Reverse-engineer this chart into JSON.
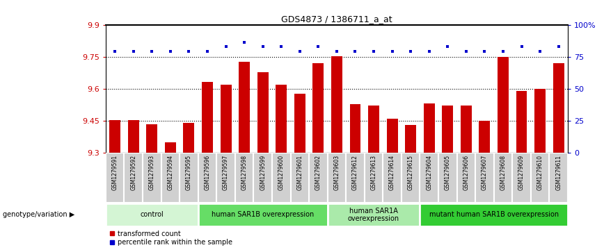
{
  "title": "GDS4873 / 1386711_a_at",
  "samples": [
    "GSM1279591",
    "GSM1279592",
    "GSM1279593",
    "GSM1279594",
    "GSM1279595",
    "GSM1279596",
    "GSM1279597",
    "GSM1279598",
    "GSM1279599",
    "GSM1279600",
    "GSM1279601",
    "GSM1279602",
    "GSM1279603",
    "GSM1279612",
    "GSM1279613",
    "GSM1279614",
    "GSM1279615",
    "GSM1279604",
    "GSM1279605",
    "GSM1279606",
    "GSM1279607",
    "GSM1279608",
    "GSM1279609",
    "GSM1279610",
    "GSM1279611"
  ],
  "bar_values": [
    9.452,
    9.451,
    9.432,
    9.348,
    9.438,
    9.632,
    9.618,
    9.728,
    9.678,
    9.618,
    9.578,
    9.72,
    9.753,
    9.528,
    9.522,
    9.46,
    9.43,
    9.53,
    9.52,
    9.52,
    9.45,
    9.752,
    9.59,
    9.6,
    9.72
  ],
  "percentile_values": [
    9.775,
    9.775,
    9.775,
    9.775,
    9.775,
    9.775,
    9.8,
    9.82,
    9.8,
    9.8,
    9.775,
    9.8,
    9.775,
    9.775,
    9.775,
    9.775,
    9.775,
    9.775,
    9.8,
    9.775,
    9.775,
    9.775,
    9.8,
    9.775,
    9.8
  ],
  "ylim_min": 9.3,
  "ylim_max": 9.9,
  "yticks_left": [
    9.3,
    9.45,
    9.6,
    9.75,
    9.9
  ],
  "ytick_left_labels": [
    "9.3",
    "9.45",
    "9.6",
    "9.75",
    "9.9"
  ],
  "dotted_lines": [
    9.75,
    9.6,
    9.45
  ],
  "right_ytick_pos": [
    9.3,
    9.45,
    9.6,
    9.75,
    9.9
  ],
  "right_ytick_labels": [
    "0",
    "25",
    "50",
    "75",
    "100%"
  ],
  "bar_color": "#cc0000",
  "dot_color": "#0000cc",
  "groups": [
    {
      "label": "control",
      "start": 0,
      "end": 4,
      "color": "#d4f5d4"
    },
    {
      "label": "human SAR1B overexpression",
      "start": 5,
      "end": 11,
      "color": "#66dd66"
    },
    {
      "label": "human SAR1A\noverexpression",
      "start": 12,
      "end": 16,
      "color": "#aaeaaa"
    },
    {
      "label": "mutant human SAR1B overexpression",
      "start": 17,
      "end": 24,
      "color": "#33cc33"
    }
  ],
  "legend_items": [
    {
      "label": "transformed count",
      "color": "#cc0000"
    },
    {
      "label": "percentile rank within the sample",
      "color": "#0000cc"
    }
  ]
}
